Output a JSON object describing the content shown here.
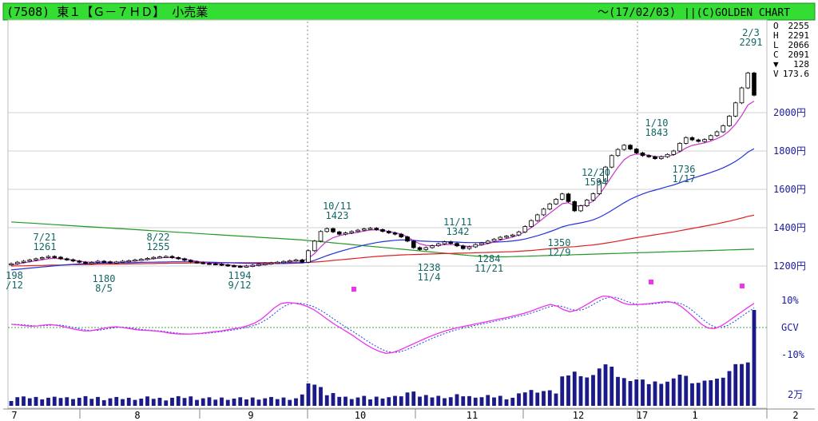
{
  "header": {
    "title": "(7508) 東１【Ｇ－７ＨＤ】 小売業",
    "date": "～(17/02/03)",
    "source": "||(C)GOLDEN CHART",
    "bg": "#33dd33"
  },
  "ohlc": [
    {
      "k": "O",
      "v": "2255"
    },
    {
      "k": "H",
      "v": "2291"
    },
    {
      "k": "L",
      "v": "2066"
    },
    {
      "k": "C",
      "v": "2091"
    },
    {
      "k": "▼",
      "v": "128"
    },
    {
      "k": "V",
      "v": "173.6"
    }
  ],
  "chart_data": {
    "type": "candlestick",
    "price_ticks": [
      "2000円",
      "1800円",
      "1600円",
      "1400円",
      "1200円"
    ],
    "price_values": [
      2000,
      1800,
      1600,
      1400,
      1200
    ],
    "osc_ticks": [
      "10%",
      "GCV",
      "-10%"
    ],
    "vol_tick": "2万",
    "x_months": [
      "7",
      "8",
      "9",
      "10",
      "11",
      "12",
      "17",
      "1",
      "2"
    ],
    "annotations": [
      {
        "t": [
          "7/21",
          "1261"
        ]
      },
      {
        "t": [
          "8/22",
          "1255"
        ]
      },
      {
        "t": [
          "198",
          "/12"
        ]
      },
      {
        "t": [
          "1180",
          "8/5"
        ]
      },
      {
        "t": [
          "1194",
          "9/12"
        ]
      },
      {
        "t": [
          "10/11",
          "1423"
        ]
      },
      {
        "t": [
          "11/11",
          "1342"
        ]
      },
      {
        "t": [
          "1238",
          "11/4"
        ]
      },
      {
        "t": [
          "1284",
          "11/21"
        ]
      },
      {
        "t": [
          "1350",
          "12/9"
        ]
      },
      {
        "t": [
          "12/20",
          "1594"
        ]
      },
      {
        "t": [
          "1/10",
          "1843"
        ]
      },
      {
        "t": [
          "1736",
          "1/17"
        ]
      },
      {
        "t": [
          "2/3",
          "2291"
        ]
      }
    ],
    "closes": [
      1212,
      1220,
      1225,
      1232,
      1238,
      1244,
      1250,
      1246,
      1238,
      1233,
      1226,
      1220,
      1214,
      1219,
      1225,
      1222,
      1218,
      1221,
      1225,
      1228,
      1232,
      1235,
      1240,
      1245,
      1248,
      1250,
      1244,
      1238,
      1230,
      1222,
      1218,
      1214,
      1212,
      1210,
      1206,
      1202,
      1199,
      1197,
      1200,
      1204,
      1209,
      1213,
      1216,
      1220,
      1224,
      1228,
      1232,
      1220,
      1280,
      1330,
      1380,
      1395,
      1378,
      1366,
      1373,
      1380,
      1387,
      1394,
      1397,
      1390,
      1381,
      1373,
      1366,
      1352,
      1330,
      1296,
      1286,
      1296,
      1306,
      1316,
      1326,
      1318,
      1305,
      1291,
      1300,
      1312,
      1320,
      1330,
      1340,
      1350,
      1356,
      1362,
      1378,
      1406,
      1437,
      1467,
      1497,
      1524,
      1548,
      1576,
      1536,
      1488,
      1514,
      1544,
      1577,
      1642,
      1716,
      1776,
      1808,
      1830,
      1810,
      1790,
      1776,
      1770,
      1760,
      1770,
      1782,
      1800,
      1840,
      1870,
      1858,
      1850,
      1860,
      1880,
      1900,
      1932,
      1982,
      2051,
      2129,
      2207,
      2091
    ],
    "ma_short": [
      1205,
      1211,
      1216,
      1222,
      1227,
      1233,
      1238,
      1240,
      1238,
      1235,
      1231,
      1226,
      1221,
      1220,
      1221,
      1221,
      1220,
      1220,
      1222,
      1224,
      1227,
      1230,
      1234,
      1238,
      1242,
      1245,
      1244,
      1241,
      1236,
      1230,
      1225,
      1220,
      1216,
      1213,
      1210,
      1206,
      1203,
      1200,
      1200,
      1201,
      1204,
      1207,
      1211,
      1215,
      1219,
      1223,
      1227,
      1225,
      1240,
      1265,
      1300,
      1330,
      1348,
      1358,
      1366,
      1371,
      1376,
      1382,
      1388,
      1389,
      1386,
      1380,
      1374,
      1366,
      1352,
      1332,
      1316,
      1308,
      1305,
      1307,
      1312,
      1313,
      1310,
      1304,
      1302,
      1305,
      1310,
      1317,
      1325,
      1334,
      1343,
      1351,
      1362,
      1379,
      1400,
      1424,
      1450,
      1476,
      1500,
      1525,
      1530,
      1515,
      1512,
      1522,
      1538,
      1572,
      1618,
      1668,
      1714,
      1754,
      1776,
      1784,
      1783,
      1778,
      1771,
      1770,
      1773,
      1780,
      1796,
      1816,
      1829,
      1836,
      1842,
      1852,
      1864,
      1880,
      1905,
      1940,
      1985,
      2040,
      2060
    ],
    "ma_mid": [
      1180,
      1183,
      1186,
      1189,
      1192,
      1195,
      1198,
      1201,
      1204,
      1207,
      1209,
      1211,
      1212,
      1213,
      1214,
      1215,
      1216,
      1216,
      1217,
      1217,
      1218,
      1219,
      1220,
      1220,
      1221,
      1221,
      1222,
      1222,
      1222,
      1222,
      1221,
      1221,
      1220,
      1219,
      1218,
      1217,
      1216,
      1215,
      1214,
      1214,
      1213,
      1213,
      1213,
      1213,
      1213,
      1214,
      1215,
      1216,
      1220,
      1230,
      1242,
      1254,
      1265,
      1275,
      1284,
      1293,
      1301,
      1309,
      1316,
      1322,
      1327,
      1331,
      1334,
      1336,
      1336,
      1334,
      1331,
      1329,
      1328,
      1327,
      1327,
      1326,
      1325,
      1323,
      1322,
      1322,
      1322,
      1323,
      1324,
      1326,
      1328,
      1331,
      1335,
      1341,
      1349,
      1358,
      1368,
      1379,
      1391,
      1404,
      1413,
      1419,
      1425,
      1432,
      1441,
      1454,
      1471,
      1490,
      1510,
      1530,
      1548,
      1563,
      1576,
      1587,
      1596,
      1605,
      1614,
      1623,
      1634,
      1646,
      1657,
      1667,
      1677,
      1688,
      1699,
      1712,
      1728,
      1746,
      1768,
      1794,
      1812
    ],
    "ma_long": [
      1200,
      1201,
      1201,
      1202,
      1203,
      1203,
      1204,
      1205,
      1205,
      1206,
      1207,
      1207,
      1208,
      1208,
      1209,
      1209,
      1210,
      1210,
      1211,
      1211,
      1212,
      1212,
      1213,
      1213,
      1214,
      1214,
      1215,
      1215,
      1215,
      1216,
      1216,
      1216,
      1216,
      1217,
      1217,
      1217,
      1217,
      1217,
      1217,
      1217,
      1218,
      1218,
      1218,
      1218,
      1218,
      1218,
      1218,
      1218,
      1219,
      1221,
      1223,
      1226,
      1229,
      1232,
      1235,
      1238,
      1241,
      1244,
      1247,
      1250,
      1252,
      1254,
      1256,
      1258,
      1259,
      1260,
      1261,
      1262,
      1263,
      1264,
      1265,
      1266,
      1267,
      1267,
      1268,
      1269,
      1270,
      1271,
      1272,
      1273,
      1274,
      1275,
      1277,
      1279,
      1281,
      1284,
      1287,
      1290,
      1293,
      1296,
      1299,
      1301,
      1304,
      1307,
      1310,
      1314,
      1319,
      1324,
      1330,
      1336,
      1342,
      1348,
      1353,
      1358,
      1363,
      1368,
      1373,
      1378,
      1384,
      1390,
      1396,
      1402,
      1408,
      1414,
      1420,
      1427,
      1434,
      1442,
      1450,
      1459,
      1465
    ],
    "ma_longest": [
      1430,
      1428,
      1426,
      1424,
      1422,
      1420,
      1418,
      1416,
      1414,
      1412,
      1410,
      1408,
      1406,
      1404,
      1402,
      1400,
      1398,
      1396,
      1394,
      1392,
      1390,
      1388,
      1386,
      1384,
      1382,
      1380,
      1378,
      1376,
      1374,
      1372,
      1370,
      1368,
      1366,
      1364,
      1362,
      1360,
      1358,
      1356,
      1354,
      1352,
      1350,
      1348,
      1346,
      1344,
      1342,
      1340,
      1338,
      1336,
      1333,
      1330,
      1327,
      1324,
      1321,
      1318,
      1315,
      1312,
      1309,
      1306,
      1303,
      1300,
      1297,
      1294,
      1291,
      1288,
      1285,
      1282,
      1279,
      1276,
      1273,
      1270,
      1267,
      1264,
      1261,
      1258,
      1255,
      1252,
      1250,
      1249,
      1248,
      1248,
      1248,
      1249,
      1250,
      1251,
      1252,
      1253,
      1254,
      1255,
      1256,
      1257,
      1258,
      1259,
      1260,
      1261,
      1262,
      1263,
      1264,
      1265,
      1266,
      1267,
      1268,
      1269,
      1270,
      1271,
      1272,
      1273,
      1274,
      1275,
      1276,
      1277,
      1278,
      1279,
      1280,
      1281,
      1282,
      1283,
      1284,
      1285,
      1286,
      1287,
      1288
    ],
    "osc_pct": [
      1.2,
      1.0,
      0.7,
      0.5,
      0.6,
      0.9,
      1.1,
      0.8,
      0.3,
      -0.3,
      -0.8,
      -1.2,
      -1.2,
      -0.8,
      -0.3,
      0.1,
      0.3,
      0.0,
      -0.4,
      -0.8,
      -1.0,
      -1.1,
      -1.3,
      -1.6,
      -2.0,
      -2.3,
      -2.4,
      -2.4,
      -2.3,
      -2.1,
      -1.8,
      -1.5,
      -1.2,
      -0.8,
      -0.4,
      0.1,
      0.7,
      1.6,
      3.0,
      5.0,
      7.2,
      8.8,
      9.2,
      9.0,
      8.6,
      7.8,
      6.6,
      5.0,
      3.2,
      1.5,
      0.0,
      -1.5,
      -3.0,
      -4.7,
      -6.3,
      -7.7,
      -8.8,
      -9.5,
      -9.2,
      -8.4,
      -7.3,
      -6.2,
      -5.1,
      -4.0,
      -3.0,
      -2.1,
      -1.3,
      -0.6,
      0.0,
      0.5,
      1.0,
      1.5,
      2.0,
      2.5,
      3.0,
      3.5,
      4.0,
      4.6,
      5.2,
      6.0,
      6.9,
      7.8,
      8.5,
      7.9,
      6.6,
      5.8,
      6.4,
      7.7,
      9.1,
      10.6,
      11.6,
      11.4,
      10.3,
      9.1,
      8.4,
      8.4,
      8.6,
      8.8,
      9.1,
      9.4,
      9.5,
      9.0,
      7.6,
      5.6,
      3.4,
      1.2,
      -0.2,
      -0.4,
      0.6,
      2.2,
      3.9,
      5.6,
      7.3,
      8.9
    ]
  }
}
